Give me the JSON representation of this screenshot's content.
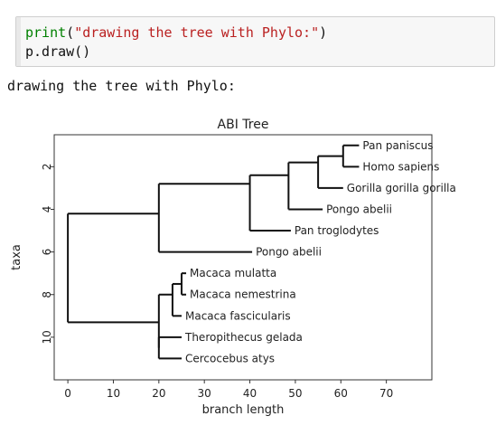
{
  "code_cell": {
    "line1_func": "print",
    "line1_open": "(",
    "line1_string": "\"drawing the tree with Phylo:\"",
    "line1_close": ")",
    "line2": "p.draw()"
  },
  "output": {
    "text": "drawing the tree with Phylo:"
  },
  "chart_data": {
    "type": "dendrogram",
    "title": "ABI Tree",
    "xlabel": "branch length",
    "ylabel": "taxa",
    "xlim": [
      -3,
      80
    ],
    "ylim": [
      12,
      0.5
    ],
    "x_ticks": [
      0,
      10,
      20,
      30,
      40,
      50,
      60,
      70
    ],
    "y_ticks": [
      2,
      4,
      6,
      8,
      10
    ],
    "grid": false,
    "leaves": [
      {
        "name": "Pan paniscus",
        "x": 64,
        "y": 1
      },
      {
        "name": "Homo sapiens",
        "x": 64,
        "y": 2
      },
      {
        "name": "Gorilla gorilla gorilla",
        "x": 60.5,
        "y": 3
      },
      {
        "name": "Pongo abelii",
        "x": 56,
        "y": 4
      },
      {
        "name": "Pan troglodytes",
        "x": 49,
        "y": 5
      },
      {
        "name": "Pongo abelii",
        "x": 40.5,
        "y": 6
      },
      {
        "name": "Macaca mulatta",
        "x": 26,
        "y": 7
      },
      {
        "name": "Macaca nemestrina",
        "x": 26,
        "y": 8
      },
      {
        "name": "Macaca fascicularis",
        "x": 25,
        "y": 9
      },
      {
        "name": "Theropithecus gelada",
        "x": 25,
        "y": 10
      },
      {
        "name": "Cercocebus atys",
        "x": 25,
        "y": 11
      }
    ],
    "nodes": [
      {
        "x": 0,
        "children": [
          {
            "x": 20,
            "y": 4.2
          },
          {
            "x": 20,
            "y": 9.3
          }
        ]
      },
      {
        "x": 20,
        "children": [
          {
            "x": 40,
            "y": 2.8
          },
          {
            "x": 40.5,
            "y": 6
          }
        ]
      },
      {
        "x": 40,
        "children": [
          {
            "x": 48.5,
            "y": 2.4
          },
          {
            "x": 49,
            "y": 5
          }
        ]
      },
      {
        "x": 48.5,
        "children": [
          {
            "x": 55,
            "y": 1.8
          },
          {
            "x": 56,
            "y": 4
          }
        ]
      },
      {
        "x": 55,
        "children": [
          {
            "x": 60.5,
            "y": 1.5
          },
          {
            "x": 60.5,
            "y": 3
          }
        ]
      },
      {
        "x": 60.5,
        "children": [
          {
            "x": 64,
            "y": 1
          },
          {
            "x": 64,
            "y": 2
          }
        ]
      },
      {
        "x": 20,
        "children": [
          {
            "x": 23,
            "y": 8
          },
          {
            "x": 20,
            "y": 10.5
          }
        ]
      },
      {
        "x": 23,
        "children": [
          {
            "x": 25,
            "y": 7.5
          },
          {
            "x": 25,
            "y": 9
          }
        ]
      },
      {
        "x": 25,
        "children": [
          {
            "x": 26,
            "y": 7
          },
          {
            "x": 26,
            "y": 8
          }
        ]
      },
      {
        "x": 20,
        "children": [
          {
            "x": 25,
            "y": 10
          },
          {
            "x": 25,
            "y": 11
          }
        ]
      }
    ]
  }
}
